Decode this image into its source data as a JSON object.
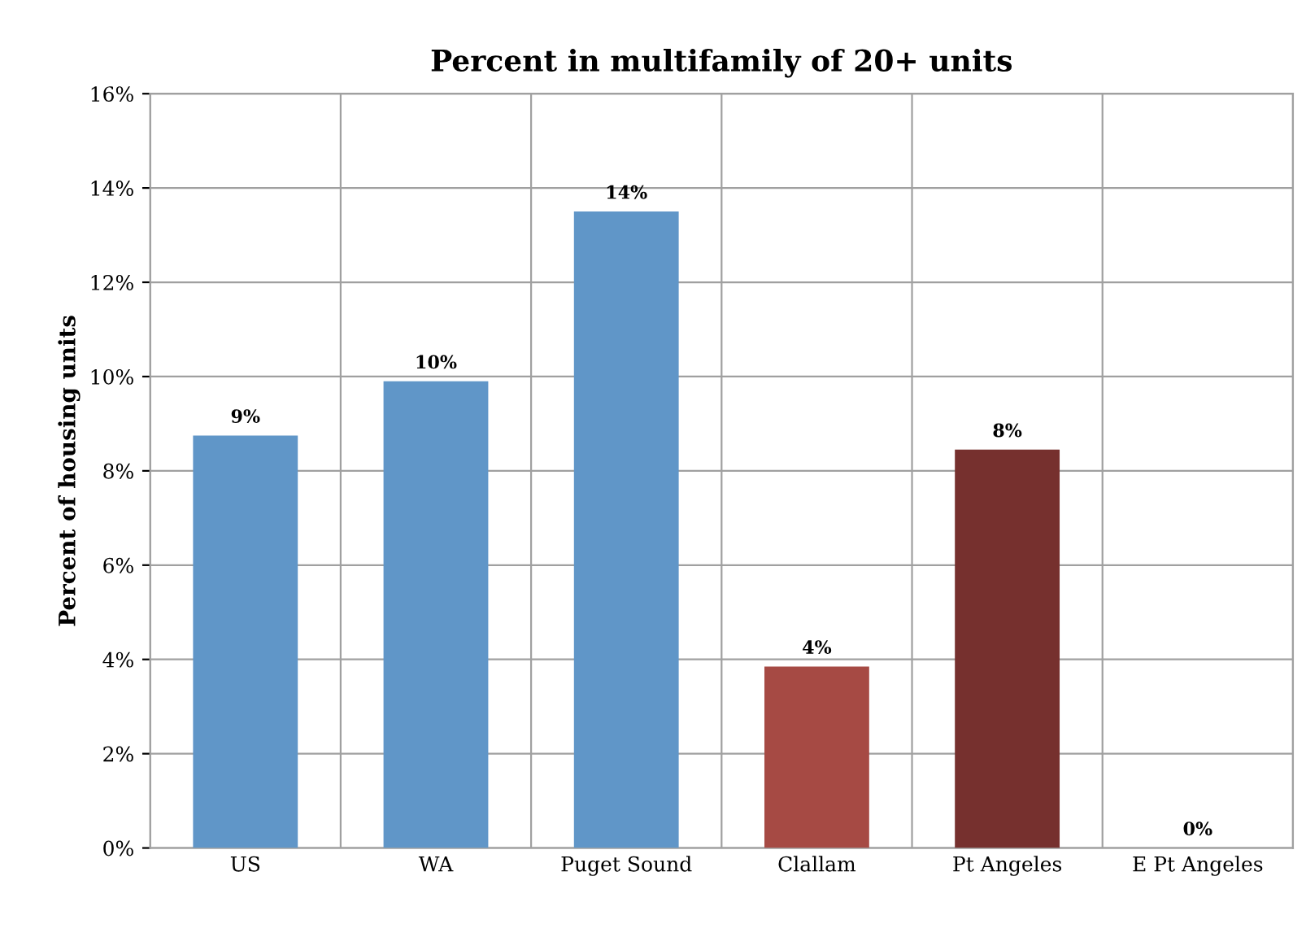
{
  "chart_data": {
    "type": "bar",
    "title": "Percent in multifamily of 20+ units",
    "ylabel": "Percent of housing units",
    "categories": [
      "US",
      "WA",
      "Puget Sound",
      "Clallam",
      "Pt Angeles",
      "E Pt Angeles"
    ],
    "values": [
      8.75,
      9.9,
      13.5,
      3.85,
      8.45,
      0
    ],
    "colors": [
      "#6096c8",
      "#6096c8",
      "#6096c8",
      "#a64a44",
      "#76302e",
      "#76302e"
    ],
    "value_labels": [
      "9%",
      "10%",
      "14%",
      "4%",
      "8%",
      "0%"
    ],
    "ylim": [
      0,
      16
    ],
    "yticks": [
      {
        "value": 0,
        "label": "0%"
      },
      {
        "value": 2,
        "label": "2%"
      },
      {
        "value": 4,
        "label": "4%"
      },
      {
        "value": 6,
        "label": "6%"
      },
      {
        "value": 8,
        "label": "8%"
      },
      {
        "value": 10,
        "label": "10%"
      },
      {
        "value": 12,
        "label": "12%"
      },
      {
        "value": 14,
        "label": "14%"
      },
      {
        "value": 16,
        "label": "16%"
      }
    ],
    "grid": true,
    "legend": false
  }
}
